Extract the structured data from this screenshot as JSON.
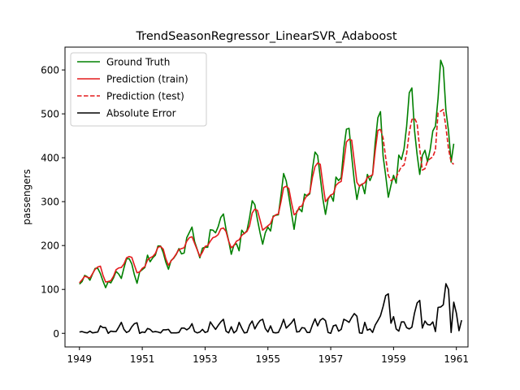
{
  "chart_data": {
    "type": "line",
    "title": "TrendSeasonRegressor_LinearSVR_Adaboost",
    "xlabel": "",
    "ylabel": "passengers",
    "xlim": [
      1948.54,
      1961.37
    ],
    "ylim": [
      -31,
      652
    ],
    "xticks": [
      1949,
      1951,
      1953,
      1955,
      1957,
      1959,
      1961
    ],
    "yticks": [
      0,
      100,
      200,
      300,
      400,
      500,
      600
    ],
    "grid": false,
    "legend_position": "top-left",
    "x_start": 1949,
    "x_step": 0.0833333,
    "series": [
      {
        "name": "Ground Truth",
        "color": "#008000",
        "style": "solid",
        "offset": 0,
        "values": [
          112,
          118,
          132,
          129,
          121,
          135,
          148,
          148,
          136,
          119,
          104,
          118,
          115,
          126,
          141,
          135,
          125,
          149,
          170,
          170,
          158,
          133,
          114,
          140,
          145,
          150,
          178,
          163,
          172,
          178,
          199,
          199,
          184,
          162,
          146,
          166,
          171,
          180,
          193,
          181,
          183,
          218,
          230,
          242,
          209,
          191,
          172,
          194,
          196,
          196,
          236,
          235,
          229,
          243,
          264,
          272,
          237,
          211,
          180,
          201,
          204,
          188,
          235,
          227,
          234,
          264,
          302,
          293,
          259,
          229,
          203,
          229,
          242,
          233,
          267,
          269,
          270,
          315,
          364,
          347,
          312,
          274,
          237,
          278,
          284,
          277,
          317,
          313,
          318,
          374,
          413,
          405,
          355,
          306,
          271,
          306,
          315,
          301,
          356,
          348,
          355,
          422,
          465,
          467,
          404,
          347,
          305,
          336,
          340,
          318,
          362,
          348,
          363,
          435,
          491,
          505,
          404,
          359,
          310,
          337,
          360,
          342,
          406,
          396,
          420,
          472,
          548,
          559,
          463,
          407,
          362,
          405,
          417,
          391,
          419,
          461,
          472,
          535,
          622,
          606,
          508,
          461,
          390,
          432
        ]
      },
      {
        "name": "Prediction (train)",
        "color": "#e31a1c",
        "style": "solid",
        "offset": 0,
        "values": [
          115,
          122,
          130,
          128,
          126,
          136,
          146,
          151,
          153,
          132,
          117,
          118,
          120,
          130,
          145,
          149,
          150,
          158,
          172,
          175,
          173,
          155,
          138,
          140,
          148,
          152,
          167,
          172,
          175,
          182,
          196,
          198,
          192,
          170,
          155,
          165,
          172,
          181,
          191,
          193,
          195,
          210,
          218,
          220,
          205,
          190,
          175,
          185,
          198,
          200,
          210,
          218,
          220,
          225,
          238,
          240,
          232,
          210,
          195,
          200,
          210,
          213,
          223,
          228,
          232,
          245,
          274,
          283,
          280,
          258,
          235,
          240,
          245,
          250,
          265,
          270,
          272,
          300,
          332,
          335,
          330,
          298,
          270,
          275,
          288,
          290,
          305,
          315,
          320,
          355,
          380,
          388,
          385,
          340,
          300,
          308,
          315,
          318,
          337,
          343,
          346,
          390,
          436,
          442,
          440,
          392,
          344,
          335,
          340,
          343,
          355,
          358,
          361,
          416,
          462,
          465
        ]
      },
      {
        "name": "Prediction (test)",
        "color": "#e31a1c",
        "style": "dashed",
        "offset": 115,
        "values": [
          465,
          445,
          400,
          360,
          348,
          352,
          355,
          368,
          380,
          383,
          410,
          458,
          487,
          490,
          478,
          420,
          372,
          375,
          393,
          398,
          402,
          418,
          502,
          506,
          510,
          470,
          420,
          390,
          385
        ]
      },
      {
        "name": "Absolute Error",
        "color": "#000000",
        "style": "solid",
        "offset": 0,
        "values": [
          3,
          4,
          2,
          1,
          5,
          1,
          2,
          3,
          17,
          13,
          13,
          0,
          5,
          4,
          4,
          14,
          25,
          9,
          2,
          5,
          15,
          22,
          24,
          0,
          3,
          2,
          11,
          9,
          3,
          4,
          3,
          1,
          8,
          8,
          9,
          1,
          1,
          1,
          2,
          12,
          12,
          8,
          12,
          22,
          4,
          1,
          3,
          9,
          2,
          4,
          26,
          17,
          9,
          18,
          26,
          32,
          5,
          1,
          15,
          1,
          6,
          25,
          12,
          1,
          2,
          19,
          28,
          10,
          21,
          29,
          32,
          11,
          3,
          17,
          2,
          1,
          2,
          15,
          32,
          12,
          18,
          24,
          33,
          3,
          4,
          13,
          12,
          2,
          2,
          19,
          33,
          17,
          30,
          34,
          29,
          2,
          0,
          17,
          19,
          5,
          9,
          32,
          29,
          25,
          36,
          45,
          39,
          1,
          0,
          25,
          7,
          10,
          2,
          19,
          29,
          40,
          61,
          86,
          90,
          23,
          38,
          10,
          5,
          26,
          26,
          13,
          10,
          14,
          46,
          69,
          75,
          12,
          28,
          20,
          19,
          26,
          4,
          59,
          60,
          65,
          113,
          100,
          2,
          71,
          46,
          6,
          30
        ]
      }
    ]
  }
}
